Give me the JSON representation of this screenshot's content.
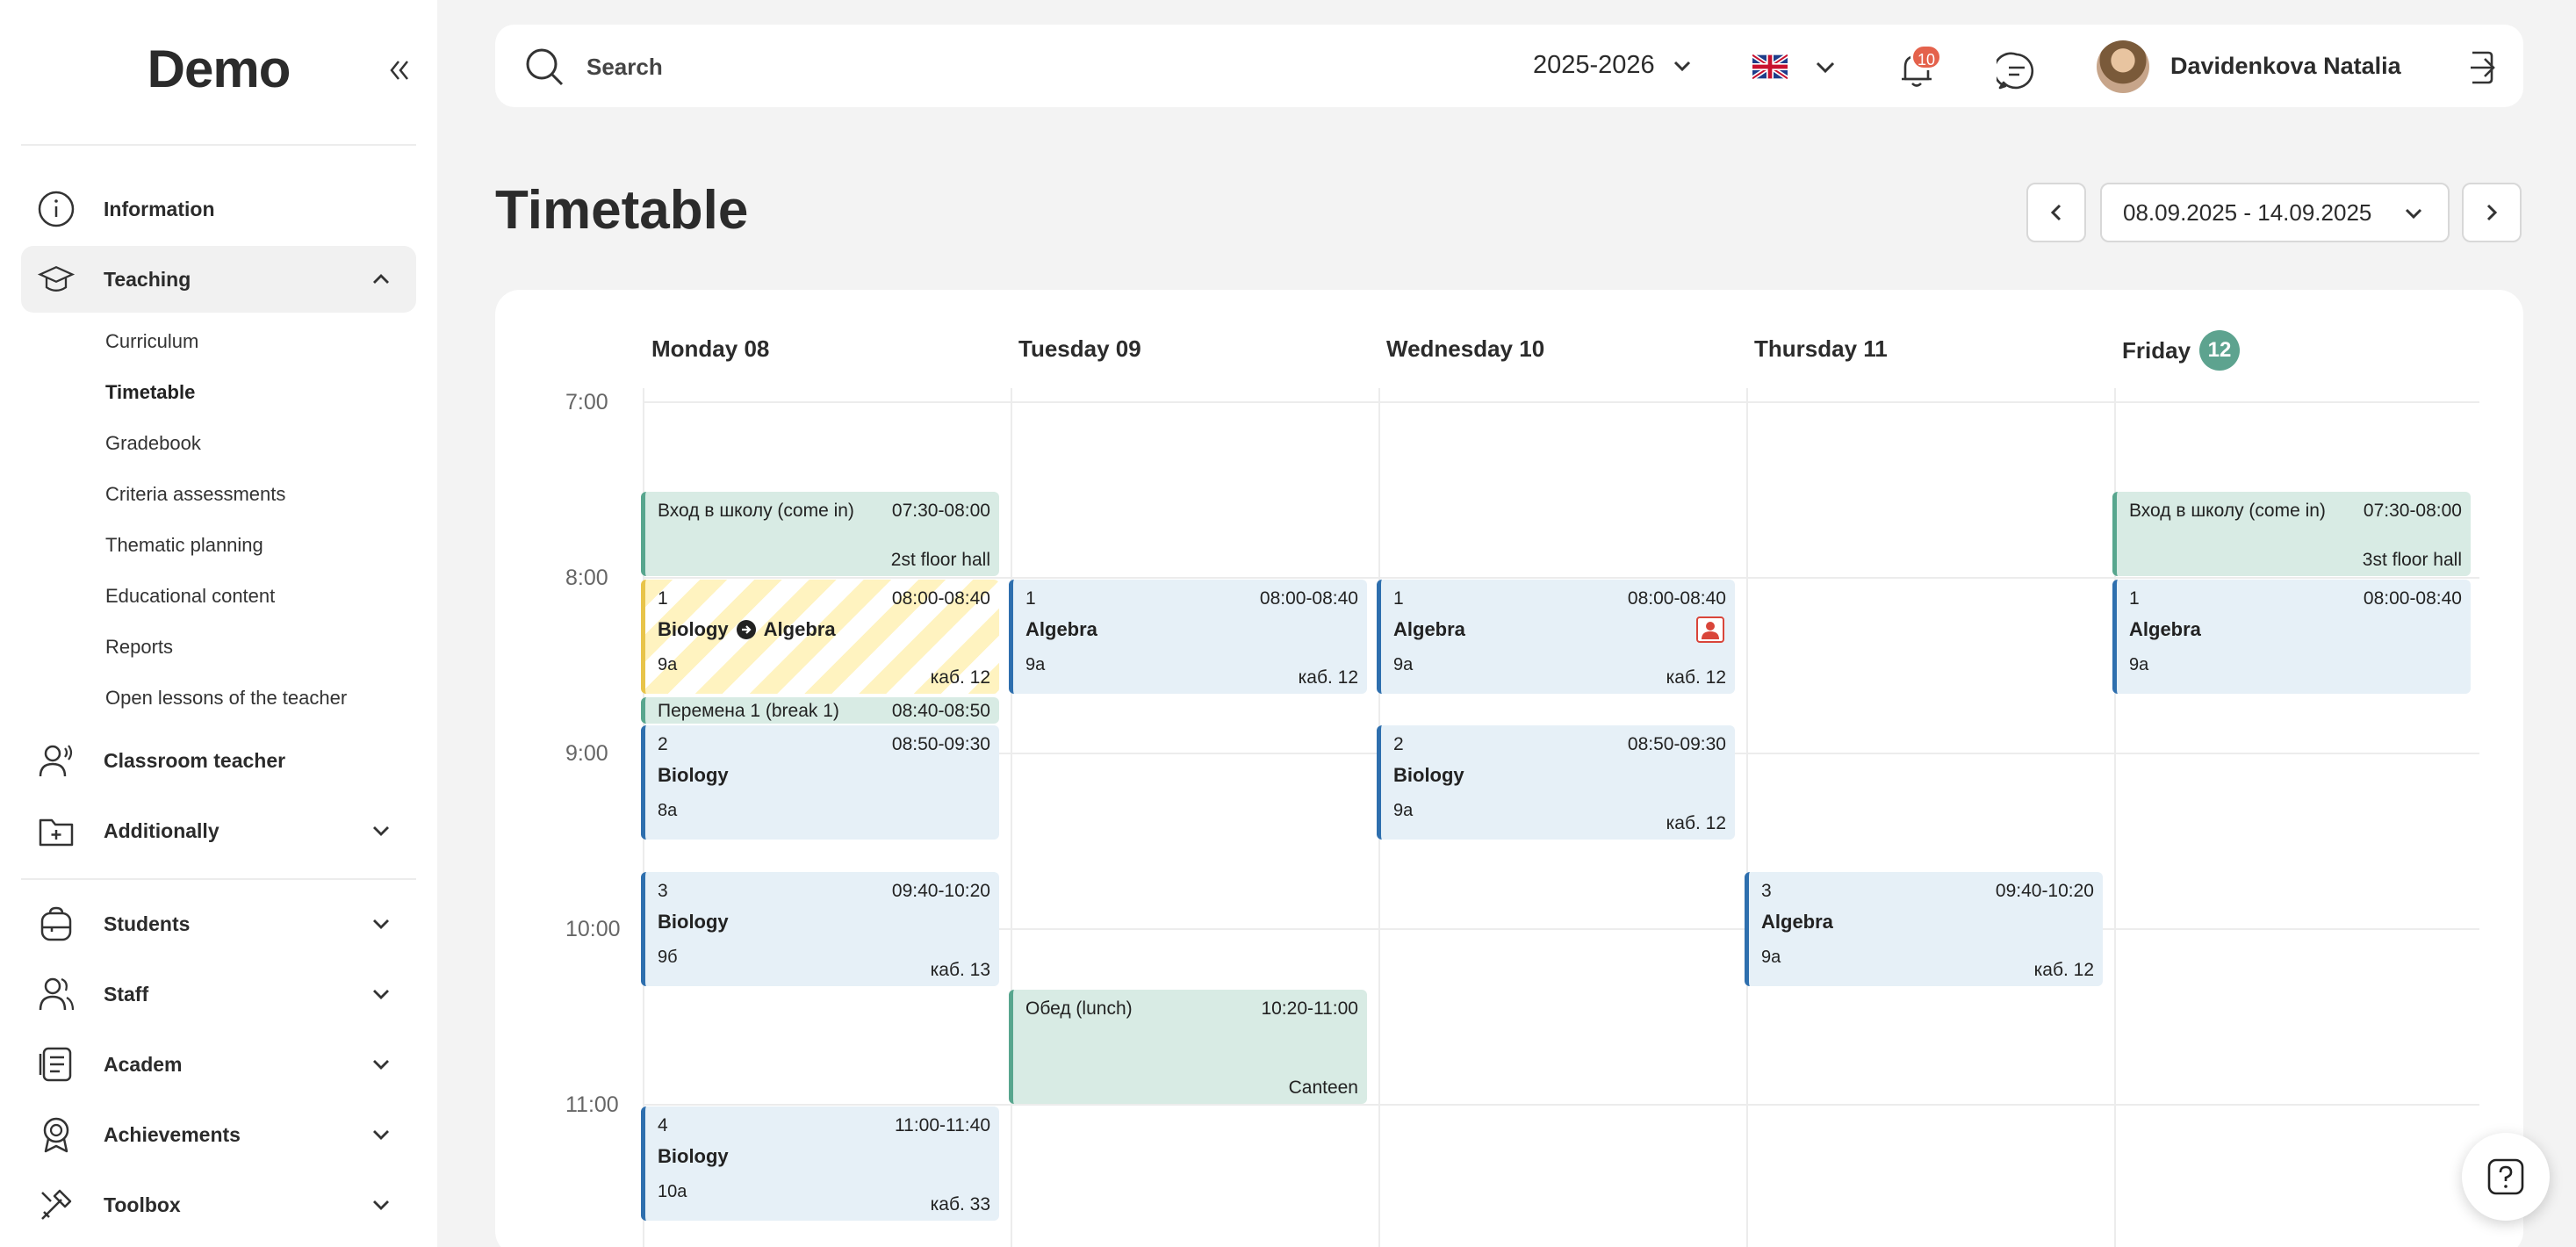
{
  "sidebar": {
    "logo": "Demo",
    "items": [
      {
        "label": "Information",
        "icon": "info-icon"
      },
      {
        "label": "Teaching",
        "icon": "graduation-cap-icon"
      },
      {
        "label": "Classroom teacher",
        "icon": "teacher-icon"
      },
      {
        "label": "Additionally",
        "icon": "folder-plus-icon"
      },
      {
        "label": "Students",
        "icon": "backpack-icon"
      },
      {
        "label": "Staff",
        "icon": "users-icon"
      },
      {
        "label": "Academ",
        "icon": "document-icon"
      },
      {
        "label": "Achievements",
        "icon": "award-icon"
      },
      {
        "label": "Toolbox",
        "icon": "tools-icon"
      }
    ],
    "teaching_sub": [
      "Curriculum",
      "Timetable",
      "Gradebook",
      "Criteria assessments",
      "Thematic planning",
      "Educational content",
      "Reports",
      "Open lessons of the teacher"
    ]
  },
  "topbar": {
    "search_placeholder": "Search",
    "year": "2025-2026",
    "notifications": "10",
    "user_name": "Davidenkova Natalia"
  },
  "page": {
    "title": "Timetable",
    "date_range": "08.09.2025 - 14.09.2025"
  },
  "calendar": {
    "days": [
      "Monday 08",
      "Tuesday 09",
      "Wednesday 10",
      "Thursday 11",
      "Friday"
    ],
    "today_number": "12",
    "hours": [
      "7:00",
      "8:00",
      "9:00",
      "10:00",
      "11:00"
    ],
    "events": {
      "mon_in": {
        "title": "Вход в школу (come in)",
        "time": "07:30-08:00",
        "loc": "2st floor hall"
      },
      "mon_1": {
        "num": "1",
        "time": "08:00-08:40",
        "subj_a": "Biology",
        "subj_b": "Algebra",
        "cls": "9a",
        "room": "каб. 12"
      },
      "mon_break": {
        "title": "Перемена 1 (break 1)",
        "time": "08:40-08:50"
      },
      "mon_2": {
        "num": "2",
        "time": "08:50-09:30",
        "subj": "Biology",
        "cls": "8a"
      },
      "mon_3": {
        "num": "3",
        "time": "09:40-10:20",
        "subj": "Biology",
        "cls": "9б",
        "room": "каб. 13"
      },
      "mon_4": {
        "num": "4",
        "time": "11:00-11:40",
        "subj": "Biology",
        "cls": "10a",
        "room": "каб. 33"
      },
      "tue_1": {
        "num": "1",
        "time": "08:00-08:40",
        "subj": "Algebra",
        "cls": "9a",
        "room": "каб. 12"
      },
      "tue_lunch": {
        "title": "Обед (lunch)",
        "time": "10:20-11:00",
        "loc": "Canteen"
      },
      "wed_1": {
        "num": "1",
        "time": "08:00-08:40",
        "subj": "Algebra",
        "cls": "9a",
        "room": "каб. 12"
      },
      "wed_2": {
        "num": "2",
        "time": "08:50-09:30",
        "subj": "Biology",
        "cls": "9a",
        "room": "каб. 12"
      },
      "thu_3": {
        "num": "3",
        "time": "09:40-10:20",
        "subj": "Algebra",
        "cls": "9a",
        "room": "каб. 12"
      },
      "fri_in": {
        "title": "Вход в школу (come in)",
        "time": "07:30-08:00",
        "loc": "3st floor hall"
      },
      "fri_1": {
        "num": "1",
        "time": "08:00-08:40",
        "subj": "Algebra",
        "cls": "9a"
      }
    }
  },
  "colors": {
    "accent": "#5da38f",
    "lesson_border": "#2e6fae",
    "badge": "#e4624c"
  }
}
